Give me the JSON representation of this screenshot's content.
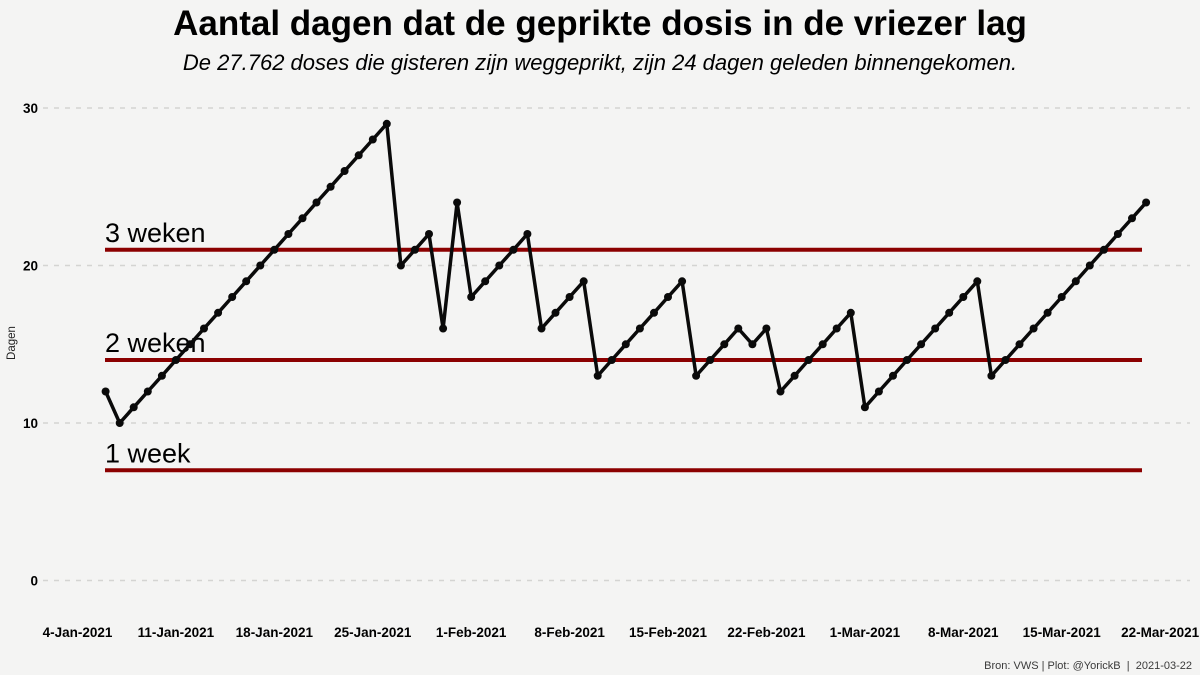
{
  "page": {
    "background": "#f4f4f3"
  },
  "header": {
    "title": "Aantal dagen dat de geprikte dosis in de vriezer lag",
    "subtitle": "De 27.762 doses die gisteren zijn weggeprikt, zijn 24 dagen geleden binnengekomen."
  },
  "footer": {
    "credit": "Bron: VWS | Plot: @YorickB  |  2021-03-22"
  },
  "chart_data": {
    "type": "line",
    "title": "Aantal dagen dat de geprikte dosis in de vriezer lag",
    "subtitle": "De 27.762 doses die gisteren zijn weggeprikt, zijn 24 dagen geleden binnengekomen.",
    "ylabel": "Dagen",
    "xlabel": "",
    "ylim": [
      0,
      31
    ],
    "yticks": [
      0,
      10,
      20,
      30
    ],
    "grid": "dashed horizontal at yticks",
    "legend": false,
    "xtick_labels": [
      "4-Jan-2021",
      "11-Jan-2021",
      "18-Jan-2021",
      "25-Jan-2021",
      "1-Feb-2021",
      "8-Feb-2021",
      "15-Feb-2021",
      "22-Feb-2021",
      "1-Mar-2021",
      "8-Mar-2021",
      "15-Mar-2021",
      "22-Mar-2021"
    ],
    "x_axis_start_date": "2021-01-04",
    "x_dates": [
      "2021-01-06",
      "2021-01-07",
      "2021-01-08",
      "2021-01-09",
      "2021-01-10",
      "2021-01-11",
      "2021-01-12",
      "2021-01-13",
      "2021-01-14",
      "2021-01-15",
      "2021-01-16",
      "2021-01-17",
      "2021-01-18",
      "2021-01-19",
      "2021-01-20",
      "2021-01-21",
      "2021-01-22",
      "2021-01-23",
      "2021-01-24",
      "2021-01-25",
      "2021-01-26",
      "2021-01-27",
      "2021-01-28",
      "2021-01-29",
      "2021-01-30",
      "2021-01-31",
      "2021-02-01",
      "2021-02-02",
      "2021-02-03",
      "2021-02-04",
      "2021-02-05",
      "2021-02-06",
      "2021-02-07",
      "2021-02-08",
      "2021-02-09",
      "2021-02-10",
      "2021-02-11",
      "2021-02-12",
      "2021-02-13",
      "2021-02-14",
      "2021-02-15",
      "2021-02-16",
      "2021-02-17",
      "2021-02-18",
      "2021-02-19",
      "2021-02-20",
      "2021-02-21",
      "2021-02-22",
      "2021-02-23",
      "2021-02-24",
      "2021-02-25",
      "2021-02-26",
      "2021-02-27",
      "2021-02-28",
      "2021-03-01",
      "2021-03-02",
      "2021-03-03",
      "2021-03-04",
      "2021-03-05",
      "2021-03-06",
      "2021-03-07",
      "2021-03-08",
      "2021-03-09",
      "2021-03-10",
      "2021-03-11",
      "2021-03-12",
      "2021-03-13",
      "2021-03-14",
      "2021-03-15",
      "2021-03-16",
      "2021-03-17",
      "2021-03-18",
      "2021-03-19",
      "2021-03-20",
      "2021-03-21"
    ],
    "values": [
      12,
      10,
      11,
      12,
      13,
      14,
      15,
      16,
      17,
      18,
      19,
      20,
      21,
      22,
      23,
      24,
      25,
      26,
      27,
      28,
      29,
      20,
      21,
      22,
      16,
      24,
      18,
      19,
      20,
      21,
      22,
      16,
      17,
      18,
      19,
      13,
      14,
      15,
      16,
      17,
      18,
      19,
      13,
      14,
      15,
      16,
      15,
      16,
      12,
      13,
      14,
      15,
      16,
      17,
      11,
      12,
      13,
      14,
      15,
      16,
      17,
      18,
      19,
      13,
      14,
      15,
      16,
      17,
      18,
      19,
      20,
      21,
      22,
      23,
      24
    ],
    "ref_lines": [
      {
        "label": "3 weken",
        "value": 21
      },
      {
        "label": "2 weken",
        "value": 14
      },
      {
        "label": "1 week",
        "value": 7
      }
    ],
    "colors": {
      "line": "#0a0a0a",
      "marker": "#0a0a0a",
      "ref_line": "#8b0000",
      "grid": "#d4d4d2",
      "background": "#f4f4f3",
      "text": "#000000",
      "credit_text": "#3a3a3a"
    }
  }
}
